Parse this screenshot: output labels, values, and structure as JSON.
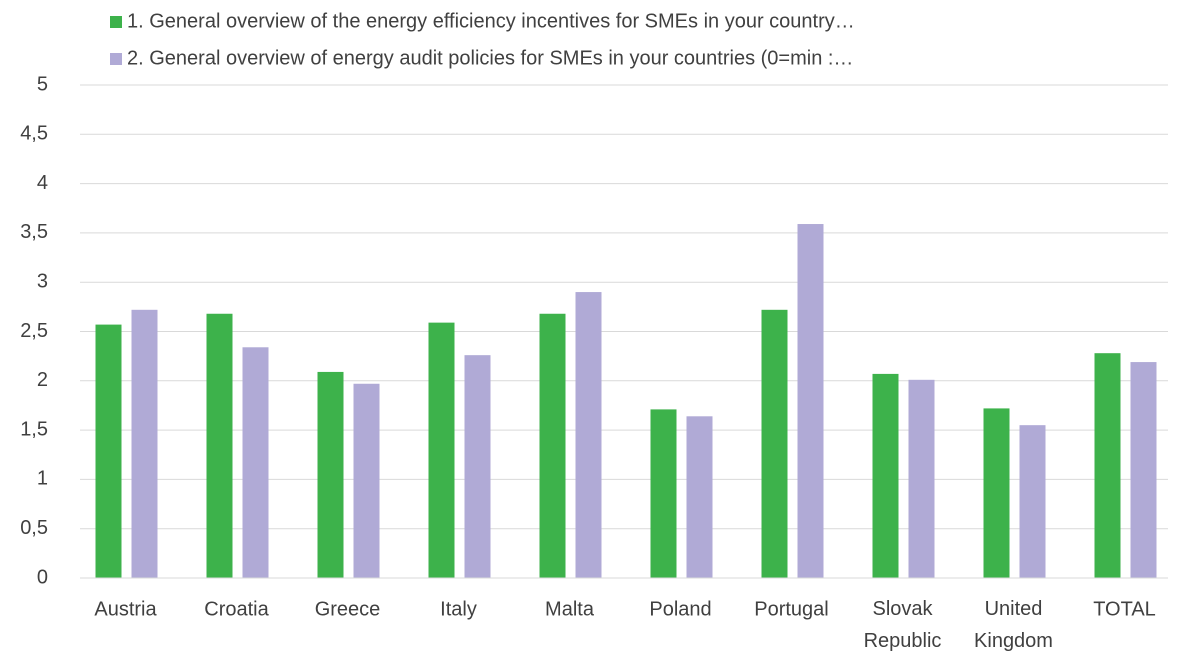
{
  "chart_data": {
    "type": "bar",
    "categories": [
      "Austria",
      "Croatia",
      "Greece",
      "Italy",
      "Malta",
      "Poland",
      "Portugal",
      "Slovak Republic",
      "United Kingdom",
      "TOTAL"
    ],
    "series": [
      {
        "name": "1. General overview of the energy efficiency incentives for SMEs in your country…",
        "color": "#3db24b",
        "values": [
          2.57,
          2.68,
          2.09,
          2.59,
          2.68,
          1.71,
          2.72,
          2.07,
          1.72,
          2.28
        ]
      },
      {
        "name": "2. General overview of energy audit policies for SMEs in your countries (0=min :…",
        "color": "#b0aad6",
        "values": [
          2.72,
          2.34,
          1.97,
          2.26,
          2.9,
          1.64,
          3.59,
          2.01,
          1.55,
          2.19
        ]
      }
    ],
    "ylim": [
      0,
      5
    ],
    "yticks": [
      0,
      {
        "value": 0.5,
        "label": "0,5"
      },
      1,
      {
        "value": 1.5,
        "label": "1,5"
      },
      2,
      {
        "value": 2.5,
        "label": "2,5"
      },
      3,
      {
        "value": 3.5,
        "label": "3,5"
      },
      4,
      {
        "value": 4.5,
        "label": "4,5"
      },
      5
    ],
    "grid": true,
    "legend": "top"
  }
}
